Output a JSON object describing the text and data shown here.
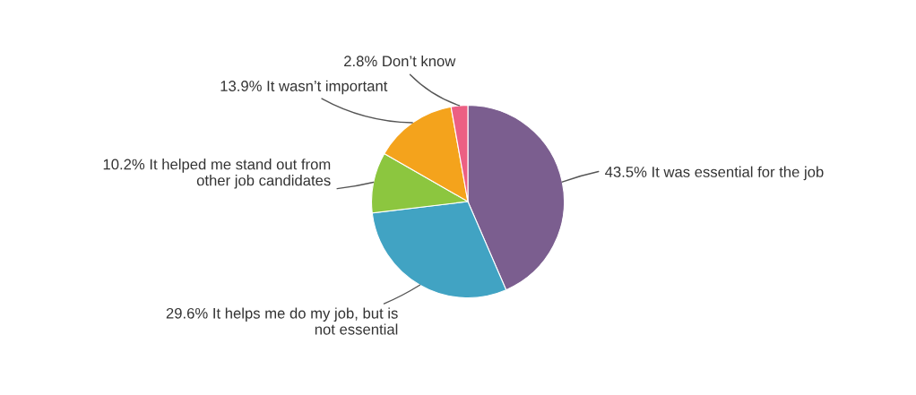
{
  "chart_data": {
    "type": "pie",
    "categories": [
      "It was essential for the job",
      "It helps me do my job, but is\nnot essential",
      "It helped me stand out from\nother job candidates",
      "It wasn’t important",
      "Don’t know"
    ],
    "values": [
      43.5,
      29.6,
      10.2,
      13.9,
      2.8
    ],
    "value_labels": [
      "43.5%",
      "29.6%",
      "10.2%",
      "13.9%",
      "2.8%"
    ],
    "colors": [
      "#7b5e8f",
      "#41a3c3",
      "#8cc63f",
      "#f4a31c",
      "#ec5f83"
    ]
  }
}
